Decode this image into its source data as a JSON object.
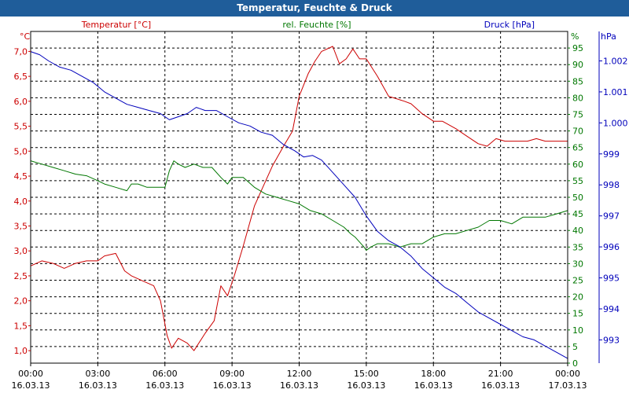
{
  "window": {
    "title": "Temperatur, Feuchte & Druck"
  },
  "chart_data": {
    "type": "line",
    "title": "Temperatur, Feuchte & Druck",
    "grid": true,
    "colors": {
      "temperature": "#cc0000",
      "humidity": "#007700",
      "pressure": "#0000bb",
      "grid": "#000000"
    },
    "x_ticks": [
      {
        "t": 0,
        "time": "00:00",
        "date": "16.03.13"
      },
      {
        "t": 3,
        "time": "03:00",
        "date": "16.03.13"
      },
      {
        "t": 6,
        "time": "06:00",
        "date": "16.03.13"
      },
      {
        "t": 9,
        "time": "09:00",
        "date": "16.03.13"
      },
      {
        "t": 12,
        "time": "12:00",
        "date": "16.03.13"
      },
      {
        "t": 15,
        "time": "15:00",
        "date": "16.03.13"
      },
      {
        "t": 18,
        "time": "18:00",
        "date": "16.03.13"
      },
      {
        "t": 21,
        "time": "21:00",
        "date": "16.03.13"
      },
      {
        "t": 24,
        "time": "00:00",
        "date": "17.03.13"
      }
    ],
    "x_range": [
      0,
      24
    ],
    "axes": {
      "temperature": {
        "label": "Temperatur [°C]",
        "unit": "°C",
        "range": [
          0.75,
          7.4
        ],
        "ticks": [
          "1,0",
          "1,5",
          "2,0",
          "2,5",
          "3,0",
          "3,5",
          "4,0",
          "4,5",
          "5,0",
          "5,5",
          "6,0",
          "6,5",
          "7,0"
        ],
        "tick_values": [
          1.0,
          1.5,
          2.0,
          2.5,
          3.0,
          3.5,
          4.0,
          4.5,
          5.0,
          5.5,
          6.0,
          6.5,
          7.0
        ]
      },
      "humidity": {
        "label": "rel. Feuchte [%]",
        "unit": "%",
        "range": [
          0,
          100
        ],
        "ticks": [
          "0",
          "5",
          "10",
          "15",
          "20",
          "25",
          "30",
          "35",
          "40",
          "45",
          "50",
          "55",
          "60",
          "65",
          "70",
          "75",
          "80",
          "85",
          "90",
          "95"
        ],
        "tick_values": [
          0,
          5,
          10,
          15,
          20,
          25,
          30,
          35,
          40,
          45,
          50,
          55,
          60,
          65,
          70,
          75,
          80,
          85,
          90,
          95
        ]
      },
      "pressure": {
        "label": "Druck [hPa]",
        "unit": "hPa",
        "range": [
          992.25,
          1002.95
        ],
        "ticks": [
          "993",
          "994",
          "995",
          "996",
          "997",
          "998",
          "999",
          "1.000",
          "1.001",
          "1.002"
        ],
        "tick_values": [
          993,
          994,
          995,
          996,
          997,
          998,
          999,
          1000,
          1001,
          1002
        ]
      }
    },
    "series": [
      {
        "name": "Temperatur [°C]",
        "axis": "temperature",
        "points": [
          [
            0,
            2.7
          ],
          [
            0.5,
            2.8
          ],
          [
            1,
            2.75
          ],
          [
            1.5,
            2.65
          ],
          [
            2,
            2.75
          ],
          [
            2.5,
            2.8
          ],
          [
            3,
            2.8
          ],
          [
            3.3,
            2.9
          ],
          [
            3.8,
            2.95
          ],
          [
            4.2,
            2.6
          ],
          [
            4.5,
            2.5
          ],
          [
            5,
            2.4
          ],
          [
            5.5,
            2.3
          ],
          [
            5.8,
            2.0
          ],
          [
            6.1,
            1.3
          ],
          [
            6.3,
            1.05
          ],
          [
            6.6,
            1.25
          ],
          [
            7.0,
            1.15
          ],
          [
            7.3,
            1.0
          ],
          [
            7.8,
            1.35
          ],
          [
            8.2,
            1.6
          ],
          [
            8.5,
            2.3
          ],
          [
            8.8,
            2.1
          ],
          [
            9.1,
            2.5
          ],
          [
            9.5,
            3.1
          ],
          [
            10,
            3.9
          ],
          [
            10.3,
            4.2
          ],
          [
            10.8,
            4.7
          ],
          [
            11.3,
            5.1
          ],
          [
            11.7,
            5.4
          ],
          [
            12,
            6.1
          ],
          [
            12.4,
            6.55
          ],
          [
            12.7,
            6.8
          ],
          [
            13.0,
            7.0
          ],
          [
            13.5,
            7.1
          ],
          [
            13.8,
            6.75
          ],
          [
            14.1,
            6.85
          ],
          [
            14.4,
            7.05
          ],
          [
            14.7,
            6.85
          ],
          [
            15,
            6.85
          ],
          [
            15.5,
            6.5
          ],
          [
            16,
            6.1
          ],
          [
            16.7,
            6.0
          ],
          [
            17,
            5.95
          ],
          [
            17.5,
            5.75
          ],
          [
            18,
            5.6
          ],
          [
            18.4,
            5.6
          ],
          [
            19,
            5.45
          ],
          [
            19.5,
            5.3
          ],
          [
            20,
            5.15
          ],
          [
            20.4,
            5.1
          ],
          [
            20.8,
            5.25
          ],
          [
            21.2,
            5.2
          ],
          [
            21.7,
            5.2
          ],
          [
            22.2,
            5.2
          ],
          [
            22.6,
            5.25
          ],
          [
            23,
            5.2
          ],
          [
            23.5,
            5.2
          ],
          [
            24,
            5.2
          ]
        ]
      },
      {
        "name": "rel. Feuchte [%]",
        "axis": "humidity",
        "points": [
          [
            0,
            61
          ],
          [
            0.5,
            60
          ],
          [
            1,
            59
          ],
          [
            1.5,
            58
          ],
          [
            2,
            57
          ],
          [
            2.5,
            56.5
          ],
          [
            3,
            55
          ],
          [
            3.3,
            54
          ],
          [
            3.8,
            53
          ],
          [
            4.3,
            52
          ],
          [
            4.5,
            54
          ],
          [
            4.8,
            54
          ],
          [
            5.2,
            53
          ],
          [
            5.6,
            53
          ],
          [
            6,
            53
          ],
          [
            6.2,
            58
          ],
          [
            6.4,
            61
          ],
          [
            6.6,
            60
          ],
          [
            6.9,
            59
          ],
          [
            7.3,
            60
          ],
          [
            7.7,
            59
          ],
          [
            8.1,
            59
          ],
          [
            8.5,
            56
          ],
          [
            8.8,
            54
          ],
          [
            9,
            56
          ],
          [
            9.5,
            56
          ],
          [
            10,
            53
          ],
          [
            10.5,
            51
          ],
          [
            11,
            50
          ],
          [
            11.5,
            49
          ],
          [
            12,
            48
          ],
          [
            12.5,
            46
          ],
          [
            13,
            45
          ],
          [
            13.5,
            43
          ],
          [
            14,
            41
          ],
          [
            14.3,
            39
          ],
          [
            14.5,
            38
          ],
          [
            14.9,
            35
          ],
          [
            15,
            34
          ],
          [
            15.2,
            35
          ],
          [
            15.5,
            36
          ],
          [
            16,
            36
          ],
          [
            16.5,
            35
          ],
          [
            17,
            36
          ],
          [
            17.5,
            36
          ],
          [
            18,
            38
          ],
          [
            18.5,
            39
          ],
          [
            19,
            39
          ],
          [
            19.5,
            40
          ],
          [
            20,
            41
          ],
          [
            20.5,
            43
          ],
          [
            21,
            43
          ],
          [
            21.5,
            42
          ],
          [
            22,
            44
          ],
          [
            22.5,
            44
          ],
          [
            23,
            44
          ],
          [
            23.5,
            45
          ],
          [
            24,
            46
          ]
        ]
      },
      {
        "name": "Druck [hPa]",
        "axis": "pressure",
        "points": [
          [
            0,
            1002.3
          ],
          [
            0.4,
            1002.2
          ],
          [
            0.8,
            1002.0
          ],
          [
            1.3,
            1001.8
          ],
          [
            1.8,
            1001.7
          ],
          [
            2.3,
            1001.5
          ],
          [
            2.8,
            1001.3
          ],
          [
            3.3,
            1001.0
          ],
          [
            3.8,
            1000.8
          ],
          [
            4.3,
            1000.6
          ],
          [
            4.8,
            1000.5
          ],
          [
            5.3,
            1000.4
          ],
          [
            5.8,
            1000.3
          ],
          [
            6.2,
            1000.1
          ],
          [
            6.6,
            1000.2
          ],
          [
            7,
            1000.3
          ],
          [
            7.4,
            1000.5
          ],
          [
            7.8,
            1000.4
          ],
          [
            8.3,
            1000.4
          ],
          [
            8.8,
            1000.2
          ],
          [
            9.3,
            1000.0
          ],
          [
            9.8,
            999.9
          ],
          [
            10.3,
            999.7
          ],
          [
            10.8,
            999.6
          ],
          [
            11.3,
            999.3
          ],
          [
            11.8,
            999.1
          ],
          [
            12.2,
            998.9
          ],
          [
            12.6,
            998.95
          ],
          [
            13,
            998.8
          ],
          [
            13.5,
            998.4
          ],
          [
            14,
            998.0
          ],
          [
            14.5,
            997.6
          ],
          [
            15,
            997.0
          ],
          [
            15.5,
            996.5
          ],
          [
            16,
            996.2
          ],
          [
            16.5,
            996.0
          ],
          [
            17,
            995.7
          ],
          [
            17.5,
            995.3
          ],
          [
            18,
            995.0
          ],
          [
            18.5,
            994.7
          ],
          [
            19,
            994.5
          ],
          [
            19.5,
            994.2
          ],
          [
            20,
            993.9
          ],
          [
            20.5,
            993.7
          ],
          [
            21,
            993.5
          ],
          [
            21.5,
            993.3
          ],
          [
            22,
            993.1
          ],
          [
            22.5,
            993.0
          ],
          [
            23,
            992.8
          ],
          [
            23.5,
            992.6
          ],
          [
            24,
            992.4
          ]
        ]
      }
    ]
  }
}
